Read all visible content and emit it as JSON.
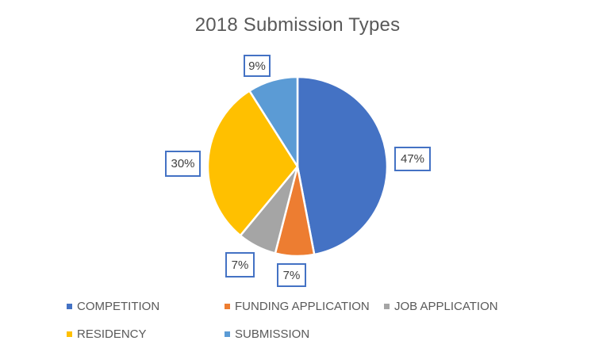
{
  "chart_data": {
    "type": "pie",
    "title": "2018 Submission Types",
    "categories": [
      "COMPETITION",
      "FUNDING APPLICATION",
      "JOB APPLICATION",
      "RESIDENCY",
      "SUBMISSION"
    ],
    "values": [
      47,
      7,
      7,
      30,
      9
    ],
    "labels": [
      "47%",
      "7%",
      "7%",
      "30%",
      "9%"
    ],
    "colors": [
      "#4472C4",
      "#ED7D31",
      "#A5A5A5",
      "#FFC000",
      "#5B9BD5"
    ],
    "legend_position": "bottom",
    "start_angle_deg": 0,
    "direction": "clockwise"
  }
}
